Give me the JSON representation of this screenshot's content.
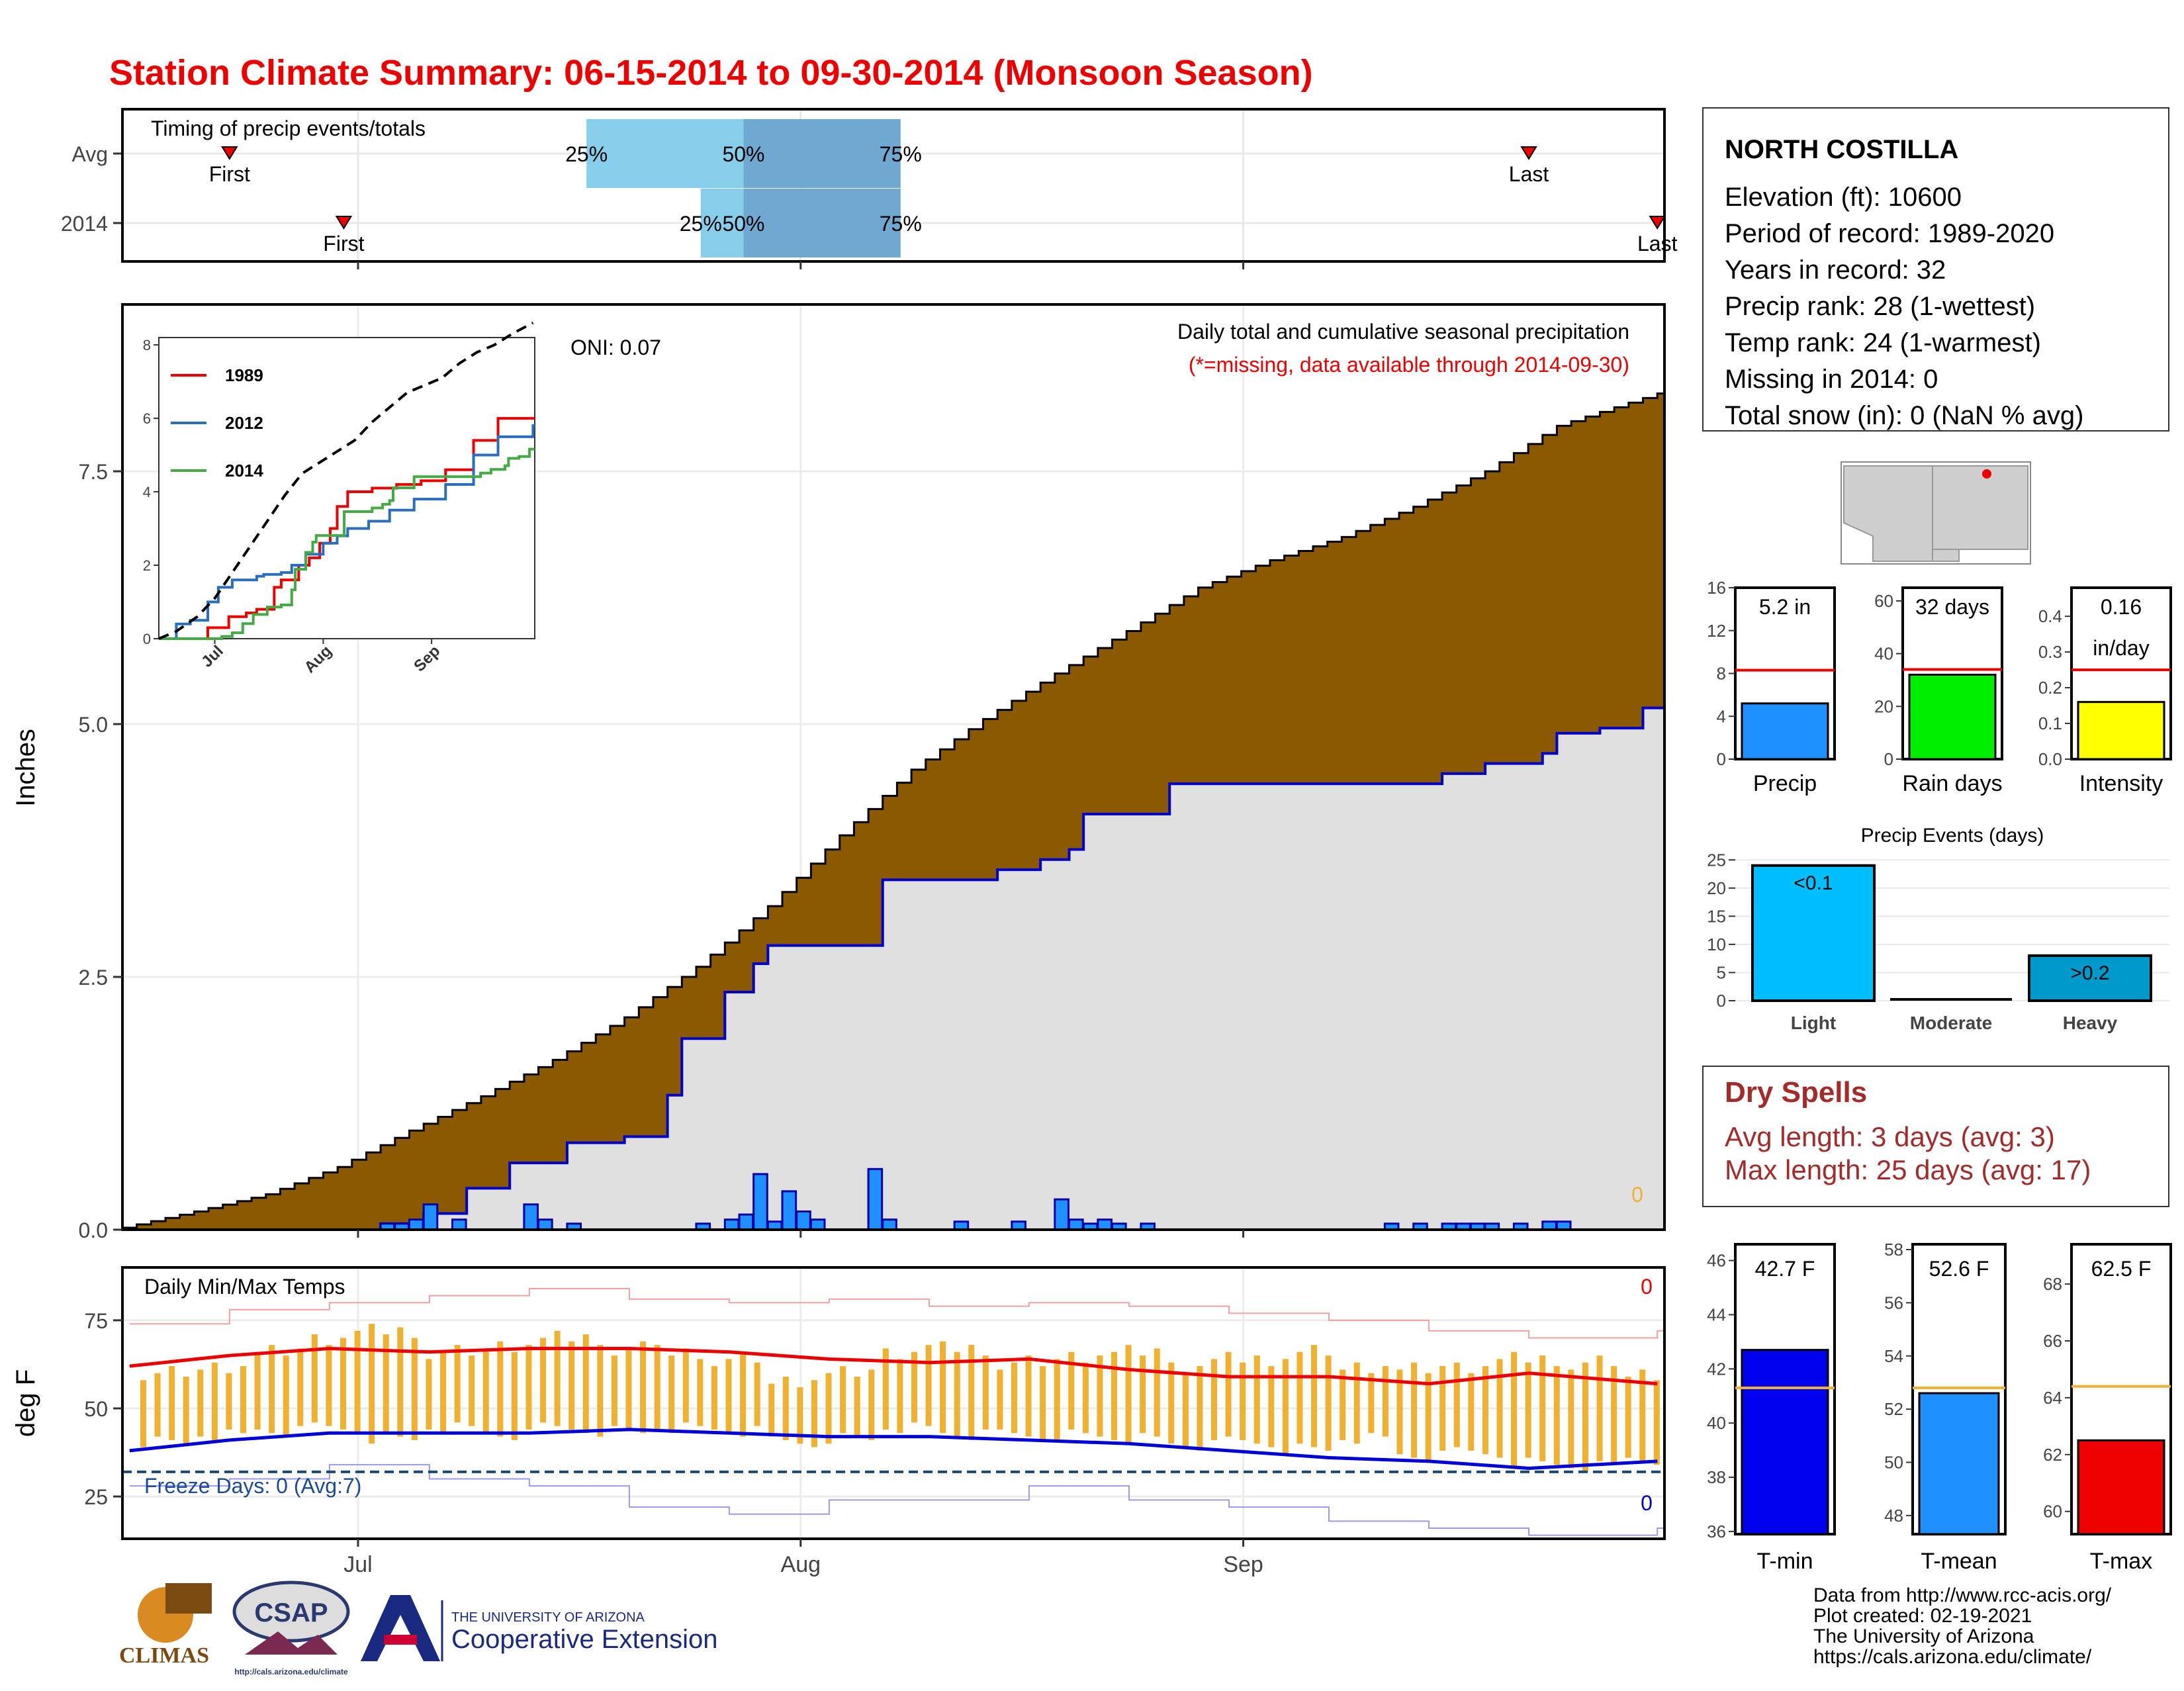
{
  "page_title": "Station Climate Summary: 06-15-2014 to 09-30-2014 (Monsoon Season)",
  "station": {
    "name": "NORTH COSTILLA",
    "lines": [
      "Elevation (ft): 10600",
      "Period of record: 1989-2020",
      "Years in record: 32",
      "Precip rank: 28 (1-wettest)",
      "Temp rank: 24 (1-warmest)",
      "Missing in 2014: 0",
      "Total snow (in): 0 (NaN % avg)"
    ]
  },
  "dry_spells": {
    "title": "Dry Spells",
    "avg_length": "Avg length: 3 days (avg: 3)",
    "max_length": "Max length: 25 days (avg: 17)"
  },
  "footer": {
    "lines": [
      "Data from http://www.rcc-acis.org/",
      "Plot created: 02-19-2021",
      "The University of Arizona",
      "https://cals.arizona.edu/climate/"
    ],
    "logos": {
      "climas": "CLIMAS",
      "csap": "CSAP",
      "csap_url": "http://cals.arizona.edu/climate",
      "ua_small": "THE UNIVERSITY OF ARIZONA",
      "ua_big": "Cooperative Extension"
    }
  },
  "colors": {
    "title": "#ee0000",
    "brown": "#8b5a00",
    "gray_fill": "#e0e0e0",
    "blue_line": "#0000cc",
    "bar_blue": "#1e90ff",
    "light_blue": "#87ceeb",
    "mid_blue": "#6fa8d0",
    "orange": "#f0b030",
    "red": "#ee0000",
    "dark_red": "#a52a2a"
  },
  "chart_data": [
    {
      "id": "timing",
      "type": "bar",
      "title": "Timing of precip events/totals",
      "categories": [
        "Avg",
        "2014"
      ],
      "x_ticks": [
        "Jul",
        "Aug",
        "Sep"
      ],
      "avg": {
        "first": "06-22",
        "p25": "07-17",
        "p50": "07-28",
        "p75": "08-08",
        "last": "09-21"
      },
      "y2014": {
        "first": "06-30",
        "p25": "07-25",
        "p50": "07-28",
        "p75": "08-08",
        "last": "09-30"
      },
      "labels": {
        "first": "First",
        "last": "Last",
        "p25": "25%",
        "p50": "50%",
        "p75": "75%"
      }
    },
    {
      "id": "main_precip",
      "type": "area",
      "title": "Daily total and cumulative seasonal precipitation",
      "subtitle": "(*=missing, data available through 2014-09-30)",
      "oni": "ONI: 0.07",
      "ylabel": "Inches",
      "ylim": [
        0,
        9
      ],
      "yticks": [
        "0.0",
        "2.5",
        "5.0",
        "7.5"
      ],
      "x_ticks": [
        "Jul",
        "Aug",
        "Sep"
      ],
      "missing_count": "0",
      "x_start": "2014-06-15",
      "x_end": "2014-09-30",
      "avg_cumulative": {
        "dates": [
          "06-15",
          "06-20",
          "06-25",
          "06-30",
          "07-05",
          "07-10",
          "07-15",
          "07-20",
          "07-25",
          "07-30",
          "08-04",
          "08-09",
          "08-14",
          "08-19",
          "08-24",
          "08-29",
          "09-03",
          "09-08",
          "09-13",
          "09-18",
          "09-23",
          "09-30"
        ],
        "values": [
          0.02,
          0.18,
          0.35,
          0.62,
          0.98,
          1.32,
          1.68,
          2.1,
          2.6,
          3.2,
          3.9,
          4.55,
          5.05,
          5.5,
          5.92,
          6.35,
          6.62,
          6.85,
          7.15,
          7.5,
          7.95,
          8.27
        ]
      },
      "cumulative_2014": {
        "dates": [
          "06-15",
          "07-03",
          "07-06",
          "07-09",
          "07-12",
          "07-16",
          "07-20",
          "07-23",
          "07-24",
          "07-27",
          "07-29",
          "07-30",
          "08-06",
          "08-07",
          "08-15",
          "08-18",
          "08-20",
          "08-21",
          "08-27",
          "09-13",
          "09-15",
          "09-18",
          "09-22",
          "09-23",
          "09-26",
          "09-29",
          "09-30"
        ],
        "values": [
          0,
          0.06,
          0.16,
          0.41,
          0.66,
          0.86,
          0.92,
          1.33,
          1.89,
          2.35,
          2.63,
          2.81,
          2.81,
          3.46,
          3.56,
          3.66,
          3.76,
          4.11,
          4.41,
          4.41,
          4.51,
          4.61,
          4.71,
          4.91,
          4.96,
          5.16,
          5.16
        ]
      },
      "daily_2014": {
        "dates": [
          "07-03",
          "07-04",
          "07-05",
          "07-06",
          "07-08",
          "07-13",
          "07-14",
          "07-16",
          "07-25",
          "07-27",
          "07-28",
          "07-29",
          "07-30",
          "07-31",
          "08-01",
          "08-02",
          "08-06",
          "08-07",
          "08-12",
          "08-16",
          "08-19",
          "08-20",
          "08-21",
          "08-22",
          "08-23",
          "08-25",
          "09-11",
          "09-13",
          "09-15",
          "09-16",
          "09-17",
          "09-18",
          "09-20",
          "09-22",
          "09-23"
        ],
        "values": [
          0.06,
          0.06,
          0.1,
          0.25,
          0.1,
          0.25,
          0.1,
          0.06,
          0.06,
          0.1,
          0.15,
          0.55,
          0.08,
          0.38,
          0.18,
          0.1,
          0.6,
          0.1,
          0.08,
          0.08,
          0.3,
          0.1,
          0.06,
          0.1,
          0.06,
          0.06,
          0.06,
          0.06,
          0.06,
          0.06,
          0.06,
          0.06,
          0.06,
          0.08,
          0.08
        ]
      }
    },
    {
      "id": "inset",
      "type": "line",
      "series": [
        {
          "name": "1989",
          "color": "#ee0000",
          "dates": [
            "06-15",
            "06-27",
            "06-29",
            "07-05",
            "07-10",
            "07-13",
            "07-18",
            "07-20",
            "07-25",
            "07-28",
            "07-31",
            "08-03",
            "08-05",
            "08-08",
            "08-15",
            "08-22",
            "08-29",
            "09-05",
            "09-13",
            "09-20",
            "09-30"
          ],
          "values": [
            0,
            0,
            0.3,
            0.6,
            0.7,
            0.8,
            1.4,
            1.6,
            2,
            2.2,
            2.6,
            3,
            3.6,
            4,
            4.1,
            4.2,
            4.3,
            4.6,
            5.4,
            6,
            6
          ]
        },
        {
          "name": "2012",
          "color": "#2a6fbf",
          "dates": [
            "06-15",
            "06-20",
            "06-24",
            "06-29",
            "07-02",
            "07-06",
            "07-13",
            "07-15",
            "07-20",
            "07-23",
            "07-27",
            "08-01",
            "08-05",
            "08-08",
            "08-14",
            "08-20",
            "08-27",
            "09-05",
            "09-13",
            "09-20",
            "09-30"
          ],
          "values": [
            0,
            0.4,
            0.5,
            1,
            1.4,
            1.6,
            1.7,
            1.75,
            1.8,
            2,
            2.3,
            2.6,
            2.8,
            3,
            3.2,
            3.5,
            3.8,
            4.2,
            5,
            5.5,
            5.8
          ]
        },
        {
          "name": "2014",
          "color": "#44aa44",
          "dates": [
            "06-15",
            "07-03",
            "07-06",
            "07-09",
            "07-12",
            "07-16",
            "07-20",
            "07-23",
            "07-24",
            "07-27",
            "07-29",
            "07-30",
            "08-06",
            "08-07",
            "08-15",
            "08-18",
            "08-20",
            "08-21",
            "08-27",
            "09-13",
            "09-15",
            "09-18",
            "09-22",
            "09-23",
            "09-26",
            "09-29",
            "09-30"
          ],
          "values": [
            0,
            0.06,
            0.16,
            0.41,
            0.66,
            0.86,
            0.92,
            1.33,
            1.89,
            2.35,
            2.63,
            2.81,
            2.81,
            3.46,
            3.56,
            3.66,
            3.76,
            4.11,
            4.41,
            4.41,
            4.51,
            4.61,
            4.71,
            4.91,
            4.96,
            5.16,
            5.16
          ]
        }
      ],
      "max_line": {
        "dates": [
          "06-15",
          "06-20",
          "06-26",
          "07-01",
          "07-06",
          "07-11",
          "07-16",
          "07-21",
          "07-26",
          "07-31",
          "08-05",
          "08-10",
          "08-15",
          "08-20",
          "08-25",
          "08-30",
          "09-04",
          "09-09",
          "09-14",
          "09-19",
          "09-24",
          "09-30"
        ],
        "values": [
          0,
          0.2,
          0.6,
          1.1,
          1.8,
          2.5,
          3.2,
          3.9,
          4.5,
          4.8,
          5.1,
          5.4,
          5.9,
          6.3,
          6.7,
          6.9,
          7.1,
          7.5,
          7.8,
          8,
          8.3,
          8.6
        ]
      },
      "ylim": [
        0,
        8
      ],
      "yticks": [
        "0",
        "2",
        "4",
        "6",
        "8"
      ],
      "x_ticks": [
        "Jul",
        "Aug",
        "Sep"
      ]
    },
    {
      "id": "temps",
      "type": "line",
      "title": "Daily Min/Max Temps",
      "ylabel": "deg F",
      "ylim": [
        13,
        90
      ],
      "yticks": [
        "25",
        "50",
        "75"
      ],
      "x_ticks": [
        "Jul",
        "Aug",
        "Sep"
      ],
      "max_count_label": "0",
      "min_count_label": "0",
      "freeze_label": "Freeze Days: 0 (Avg:7)",
      "freeze_threshold": 32,
      "avg_max": {
        "dates": [
          "06-15",
          "06-22",
          "06-29",
          "07-06",
          "07-13",
          "07-20",
          "07-27",
          "08-03",
          "08-10",
          "08-17",
          "08-24",
          "08-31",
          "09-07",
          "09-14",
          "09-21",
          "09-30"
        ],
        "values": [
          62,
          65,
          67,
          66,
          67,
          67,
          66,
          64,
          63,
          64,
          61,
          59,
          59,
          57,
          60,
          57
        ]
      },
      "avg_min": {
        "dates": [
          "06-15",
          "06-22",
          "06-29",
          "07-06",
          "07-13",
          "07-20",
          "07-27",
          "08-03",
          "08-10",
          "08-17",
          "08-24",
          "08-31",
          "09-07",
          "09-14",
          "09-21",
          "09-30"
        ],
        "values": [
          38,
          41,
          43,
          43,
          43,
          44,
          43,
          42,
          42,
          41,
          40,
          38,
          36,
          35,
          33,
          35
        ]
      },
      "record_max": {
        "dates": [
          "06-15",
          "06-22",
          "06-29",
          "07-06",
          "07-13",
          "07-20",
          "07-27",
          "08-03",
          "08-10",
          "08-17",
          "08-24",
          "08-31",
          "09-07",
          "09-14",
          "09-21",
          "09-30"
        ],
        "values": [
          74,
          78,
          80,
          82,
          84,
          81,
          80,
          81,
          79,
          80,
          79,
          77,
          75,
          72,
          70,
          72
        ]
      },
      "record_min": {
        "dates": [
          "06-15",
          "06-22",
          "06-29",
          "07-06",
          "07-13",
          "07-20",
          "07-27",
          "08-03",
          "08-10",
          "08-17",
          "08-24",
          "08-31",
          "09-07",
          "09-14",
          "09-21",
          "09-30"
        ],
        "values": [
          28,
          30,
          34,
          30,
          28,
          22,
          20,
          24,
          24,
          28,
          24,
          22,
          18,
          16,
          14,
          16
        ]
      },
      "daily_2014": {
        "dates": [
          "06-16",
          "06-20",
          "06-24",
          "06-28",
          "07-02",
          "07-06",
          "07-10",
          "07-14",
          "07-18",
          "07-22",
          "07-26",
          "07-30",
          "08-03",
          "08-07",
          "08-11",
          "08-15",
          "08-19",
          "08-23",
          "08-27",
          "08-31",
          "09-04",
          "09-08",
          "09-12",
          "09-16",
          "09-20",
          "09-24",
          "09-28"
        ],
        "max": [
          60,
          62,
          66,
          70,
          72,
          66,
          68,
          70,
          67,
          66,
          64,
          58,
          60,
          66,
          67,
          63,
          65,
          66,
          62,
          64,
          66,
          62,
          61,
          62,
          64,
          63,
          60
        ],
        "min": [
          40,
          42,
          43,
          44,
          41,
          44,
          42,
          44,
          43,
          44,
          43,
          40,
          41,
          44,
          42,
          42,
          42,
          41,
          39,
          40,
          38,
          41,
          36,
          37,
          34,
          33,
          35
        ]
      }
    },
    {
      "id": "precip_stats",
      "type": "bar",
      "panels": [
        {
          "label": "Precip",
          "value_label": "5.2 in",
          "value": 5.2,
          "avg": 8.3,
          "ylim": [
            0,
            16
          ],
          "yticks": [
            "0",
            "4",
            "8",
            "12",
            "16"
          ],
          "color": "#1e90ff"
        },
        {
          "label": "Rain days",
          "value_label": "32 days",
          "value": 32,
          "avg": 34,
          "ylim": [
            0,
            65
          ],
          "yticks": [
            "0",
            "20",
            "40",
            "60"
          ],
          "color": "#00ee00"
        },
        {
          "label": "Intensity",
          "value_label": "0.16",
          "value_label2": "in/day",
          "value": 0.16,
          "avg": 0.25,
          "ylim": [
            0,
            0.48
          ],
          "yticks": [
            "0.0",
            "0.1",
            "0.2",
            "0.3",
            "0.4"
          ],
          "color": "#ffff00"
        }
      ]
    },
    {
      "id": "precip_events",
      "type": "bar",
      "title": "Precip Events (days)",
      "categories": [
        "Light",
        "Moderate",
        "Heavy"
      ],
      "values": [
        24,
        0,
        8
      ],
      "bar_labels": [
        "<0.1",
        "",
        ">0.2"
      ],
      "ylim": [
        0,
        25
      ],
      "yticks": [
        "0",
        "5",
        "10",
        "15",
        "20",
        "25"
      ],
      "colors": [
        "#00bfff",
        "#1e90ff",
        "#0099cc"
      ]
    },
    {
      "id": "temp_stats",
      "type": "bar",
      "panels": [
        {
          "label": "T-min",
          "value_label": "42.7 F",
          "value": 42.7,
          "avg": 41.3,
          "ylim": [
            35.9,
            46.6
          ],
          "yticks": [
            "36",
            "38",
            "40",
            "42",
            "44",
            "46"
          ],
          "color": "#0000ee"
        },
        {
          "label": "T-mean",
          "value_label": "52.6 F",
          "value": 52.6,
          "avg": 52.8,
          "ylim": [
            47.3,
            58.2
          ],
          "yticks": [
            "48",
            "50",
            "52",
            "54",
            "56",
            "58"
          ],
          "color": "#1e90ff"
        },
        {
          "label": "T-max",
          "value_label": "62.5 F",
          "value": 62.5,
          "avg": 64.4,
          "ylim": [
            59.2,
            69.4
          ],
          "yticks": [
            "60",
            "62",
            "64",
            "66",
            "68"
          ],
          "color": "#ee0000"
        }
      ]
    }
  ]
}
